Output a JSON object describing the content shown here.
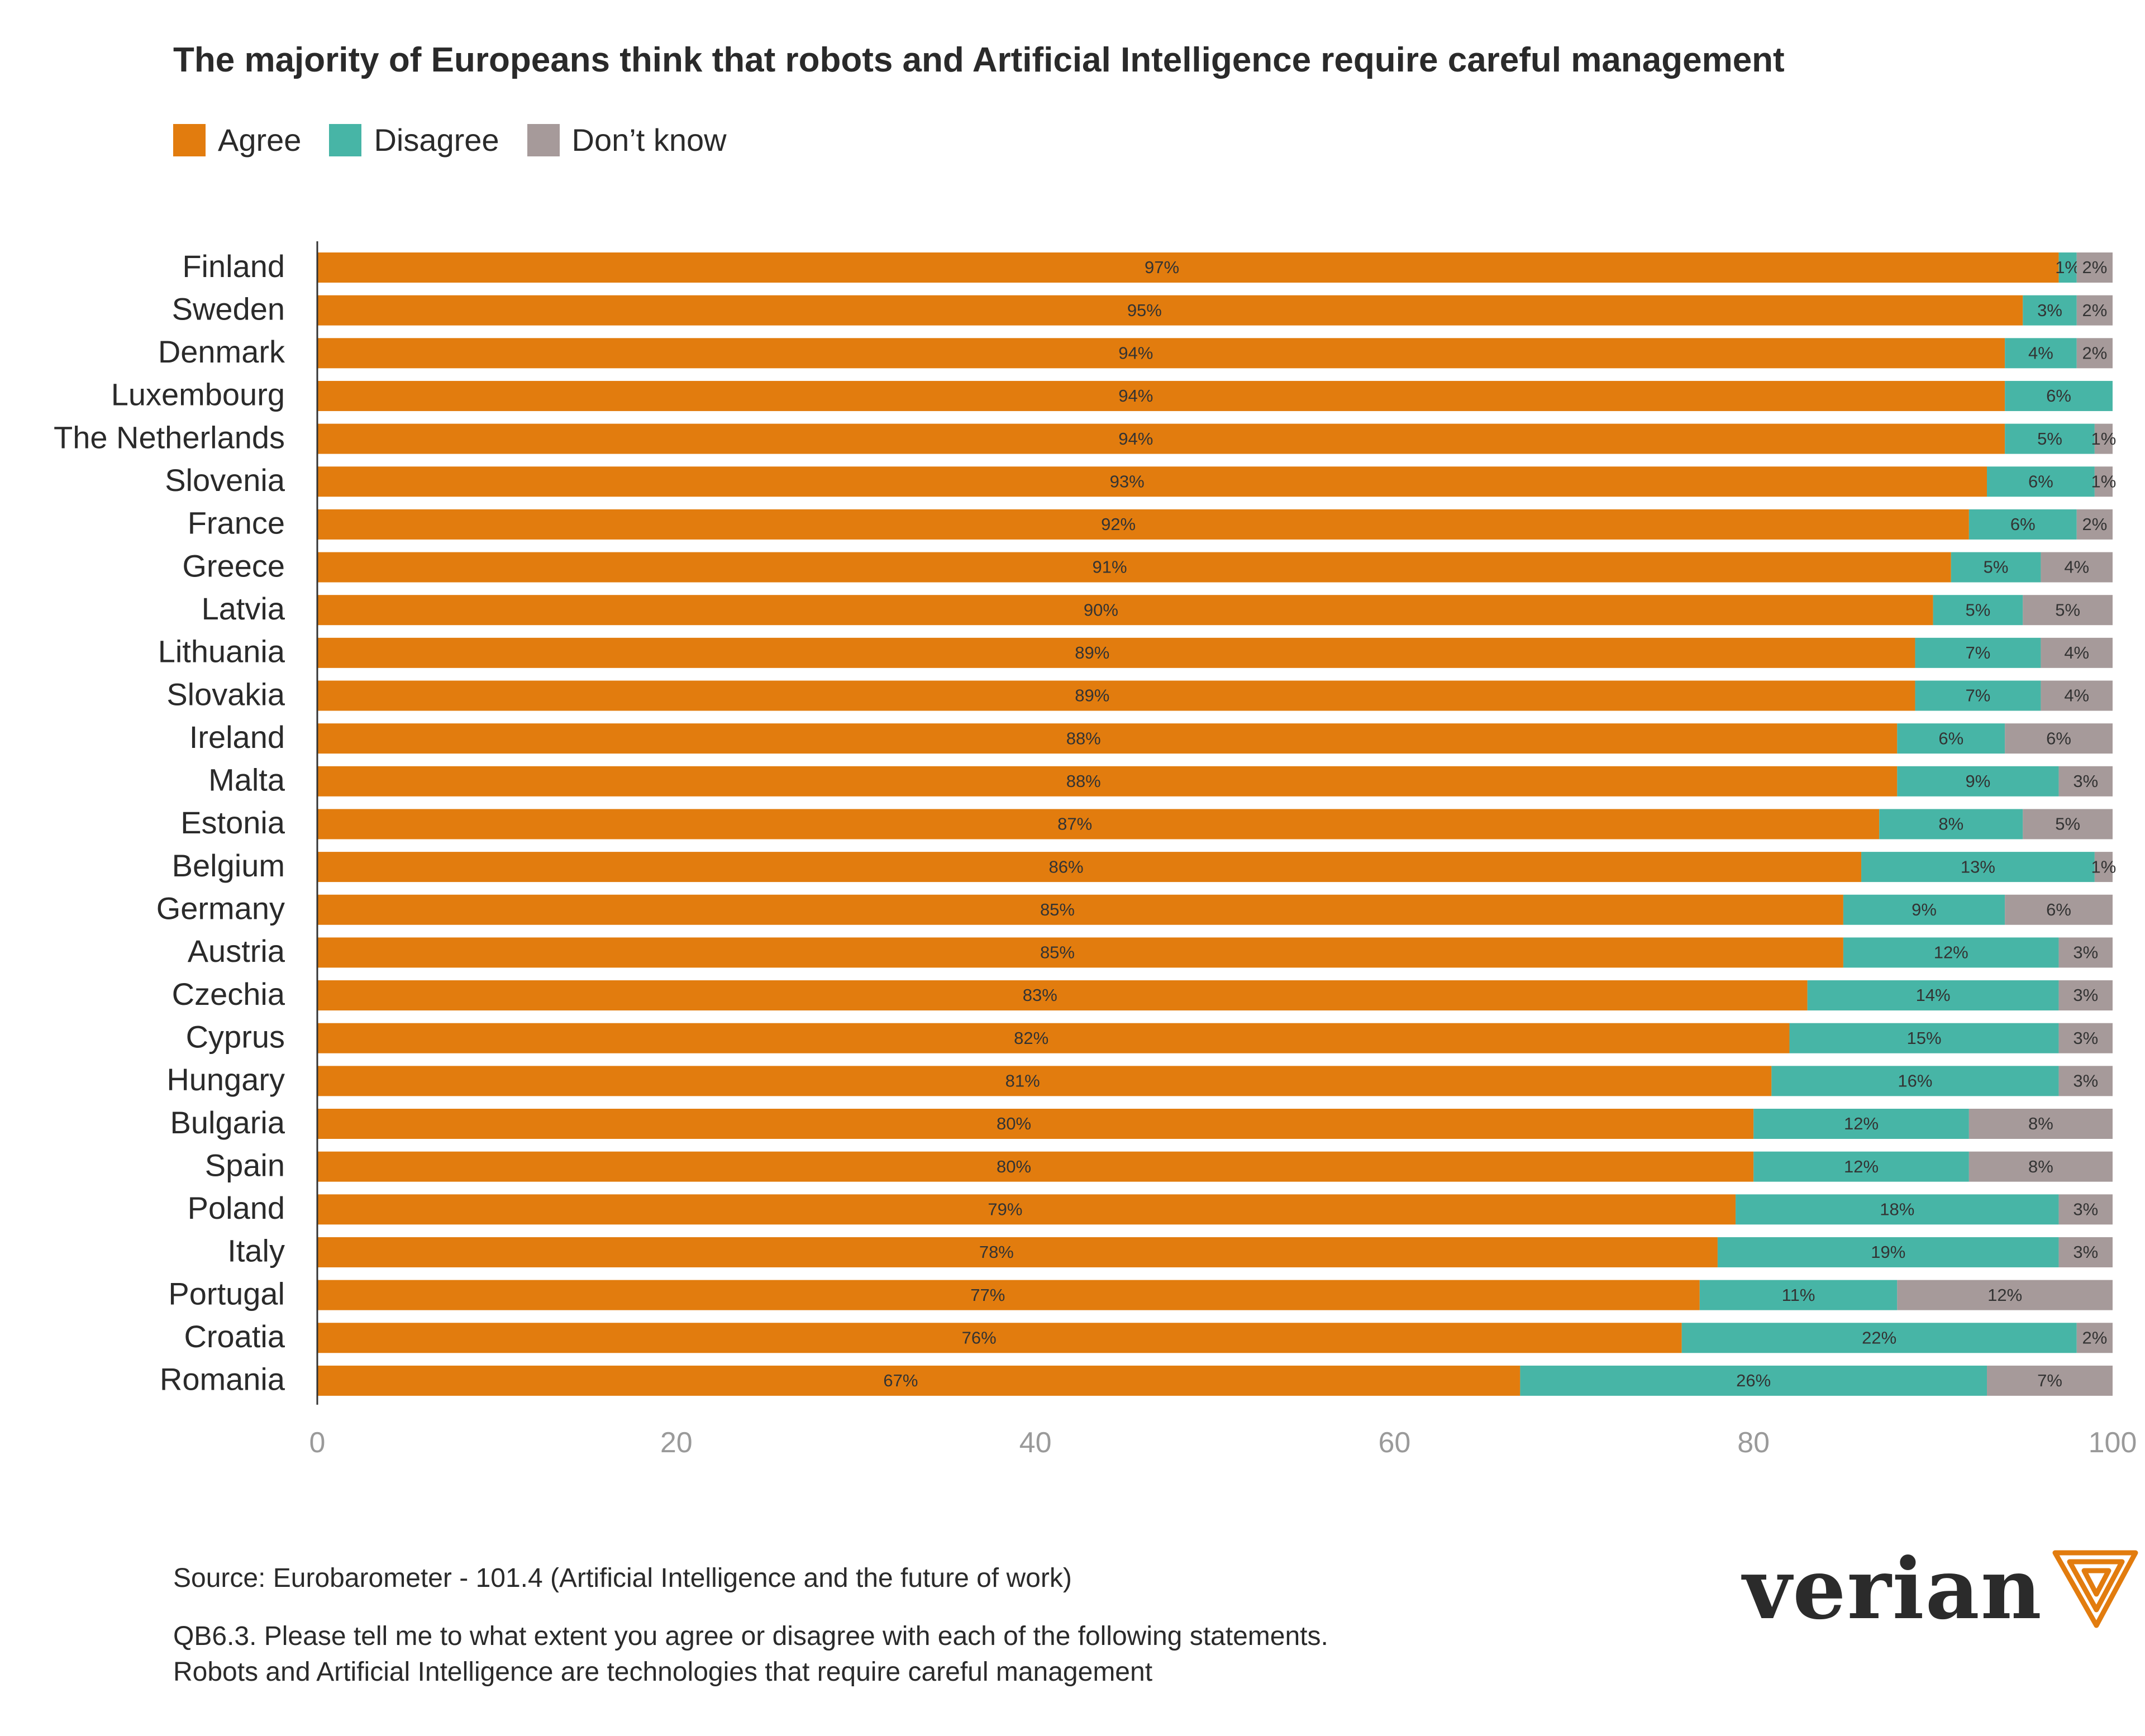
{
  "chart_data": {
    "type": "bar",
    "orientation": "horizontal",
    "stacked": true,
    "title": "The majority of Europeans think that robots and Artificial Intelligence require careful management",
    "xlim": [
      0,
      100
    ],
    "xticks": [
      "0",
      "20",
      "40",
      "60",
      "80",
      "100"
    ],
    "categories": [
      "Finland",
      "Sweden",
      "Denmark",
      "Luxembourg",
      "The Netherlands",
      "Slovenia",
      "France",
      "Greece",
      "Latvia",
      "Lithuania",
      "Slovakia",
      "Ireland",
      "Malta",
      "Estonia",
      "Belgium",
      "Germany",
      "Austria",
      "Czechia",
      "Cyprus",
      "Hungary",
      "Bulgaria",
      "Spain",
      "Poland",
      "Italy",
      "Portugal",
      "Croatia",
      "Romania"
    ],
    "series": [
      {
        "name": "Agree",
        "color": "#E27C0E",
        "values": [
          97,
          95,
          94,
          94,
          94,
          93,
          92,
          91,
          90,
          89,
          89,
          88,
          88,
          87,
          86,
          85,
          85,
          83,
          82,
          81,
          80,
          80,
          79,
          78,
          77,
          76,
          67
        ]
      },
      {
        "name": "Disagree",
        "color": "#47B5A6",
        "values": [
          1,
          3,
          4,
          6,
          5,
          6,
          6,
          5,
          5,
          7,
          7,
          6,
          9,
          8,
          13,
          9,
          12,
          14,
          15,
          16,
          12,
          12,
          18,
          19,
          11,
          22,
          26
        ]
      },
      {
        "name": "Don’t know",
        "color": "#A69A9A",
        "values": [
          2,
          2,
          2,
          0,
          1,
          1,
          2,
          4,
          5,
          4,
          4,
          6,
          3,
          5,
          1,
          6,
          3,
          3,
          3,
          3,
          8,
          8,
          3,
          3,
          12,
          2,
          7
        ]
      }
    ],
    "legend_position": "top-left",
    "label_suffix": "%"
  },
  "footer": {
    "source": "Source: Eurobarometer - 101.4 (Artificial Intelligence and the future of work)",
    "question_line1": "QB6.3. Please tell me to what extent you agree or disagree with each of the following statements.",
    "question_line2": "Robots and Artificial Intelligence are technologies that require careful management"
  },
  "logo": {
    "text": "verian",
    "color": "#E27C0E"
  }
}
